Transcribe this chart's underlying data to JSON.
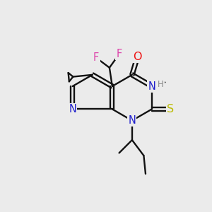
{
  "background_color": "#ebebeb",
  "atom_colors": {
    "C": "#000000",
    "N": "#2020cc",
    "O": "#ee1111",
    "F": "#dd44aa",
    "S": "#bbbb00",
    "H": "#888888"
  },
  "bond_color": "#111111",
  "figsize": [
    3.0,
    3.0
  ],
  "dpi": 100
}
